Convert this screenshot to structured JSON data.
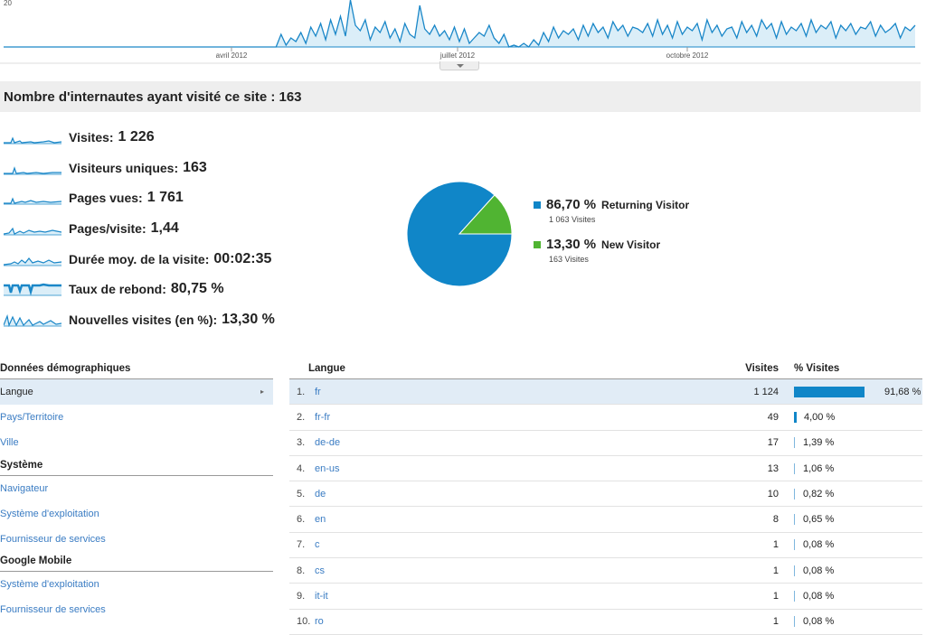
{
  "timeline": {
    "y_top_label": "20",
    "x_labels": [
      "avril 2012",
      "juillet 2012",
      "octobre 2012"
    ],
    "line_color": "#1a87c8",
    "fill_color": "#dbeef8"
  },
  "section_title": "Nombre d'internautes ayant visité ce site : 163",
  "metrics": [
    {
      "label": "Visites:",
      "value": "1 226",
      "spark_icon": "sparkline-icon"
    },
    {
      "label": "Visiteurs uniques:",
      "value": "163",
      "spark_icon": "sparkline-icon"
    },
    {
      "label": "Pages vues:",
      "value": "1 761",
      "spark_icon": "sparkline-icon"
    },
    {
      "label": "Pages/visite:",
      "value": "1,44",
      "spark_icon": "sparkline-icon"
    },
    {
      "label": "Durée moy. de la visite:",
      "value": "00:02:35",
      "spark_icon": "sparkline-icon"
    },
    {
      "label": "Taux de rebond:",
      "value": "80,75 %",
      "spark_icon": "sparkline-icon"
    },
    {
      "label": "Nouvelles visites (en %):",
      "value": "13,30 %",
      "spark_icon": "sparkline-icon"
    }
  ],
  "chart_data": {
    "type": "pie",
    "slices": [
      {
        "name": "Returning Visitor",
        "percent": 86.7,
        "percent_label": "86,70 %",
        "visits_label": "1 063 Visites",
        "color": "#1086c8"
      },
      {
        "name": "New Visitor",
        "percent": 13.3,
        "percent_label": "13,30 %",
        "visits_label": "163 Visites",
        "color": "#50b432"
      }
    ]
  },
  "left_nav": {
    "sections": [
      {
        "heading": "Données démographiques",
        "items": [
          "Langue",
          "Pays/Territoire",
          "Ville"
        ]
      },
      {
        "heading": "Système",
        "items": [
          "Navigateur",
          "Système d'exploitation",
          "Fournisseur de services"
        ]
      },
      {
        "heading": "Google Mobile",
        "items": [
          "Système d'exploitation",
          "Fournisseur de services"
        ]
      }
    ],
    "selected": "Langue"
  },
  "table": {
    "headers": {
      "dimension": "Langue",
      "visits": "Visites",
      "pct": "% Visites"
    },
    "rows": [
      {
        "rank": "1.",
        "lang": "fr",
        "visits": "1 124",
        "pct": "91,68 %",
        "fraction": 0.9168
      },
      {
        "rank": "2.",
        "lang": "fr-fr",
        "visits": "49",
        "pct": "4,00 %",
        "fraction": 0.04
      },
      {
        "rank": "3.",
        "lang": "de-de",
        "visits": "17",
        "pct": "1,39 %",
        "fraction": 0.0139
      },
      {
        "rank": "4.",
        "lang": "en-us",
        "visits": "13",
        "pct": "1,06 %",
        "fraction": 0.0106
      },
      {
        "rank": "5.",
        "lang": "de",
        "visits": "10",
        "pct": "0,82 %",
        "fraction": 0.0082
      },
      {
        "rank": "6.",
        "lang": "en",
        "visits": "8",
        "pct": "0,65 %",
        "fraction": 0.0065
      },
      {
        "rank": "7.",
        "lang": "c",
        "visits": "1",
        "pct": "0,08 %",
        "fraction": 0.0008
      },
      {
        "rank": "8.",
        "lang": "cs",
        "visits": "1",
        "pct": "0,08 %",
        "fraction": 0.0008
      },
      {
        "rank": "9.",
        "lang": "it-it",
        "visits": "1",
        "pct": "0,08 %",
        "fraction": 0.0008
      },
      {
        "rank": "10.",
        "lang": "ro",
        "visits": "1",
        "pct": "0,08 %",
        "fraction": 0.0008
      }
    ]
  }
}
